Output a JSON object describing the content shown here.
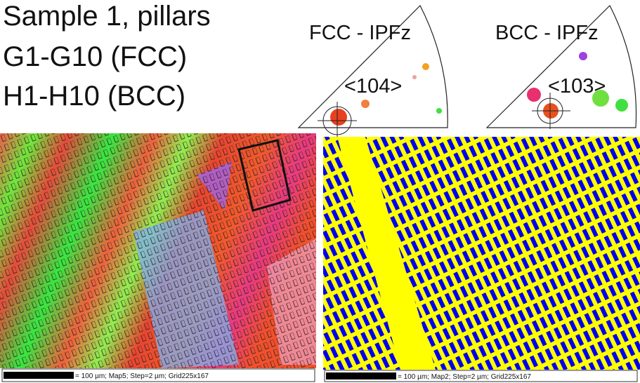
{
  "header": {
    "lines": [
      "Sample 1, pillars",
      "G1-G10 (FCC)",
      "H1-H10 (BCC)"
    ]
  },
  "ipf": [
    {
      "title": "FCC - IPFz",
      "direction": "<104>"
    },
    {
      "title": "BCC - IPFz",
      "direction": "<103>"
    }
  ],
  "maps": [
    {
      "scale": "= 100 µm; Map5; Step=2 µm; Grid225x167"
    },
    {
      "scale": "= 100 µm; Map2; Step=2 µm; Grid225x167"
    }
  ]
}
